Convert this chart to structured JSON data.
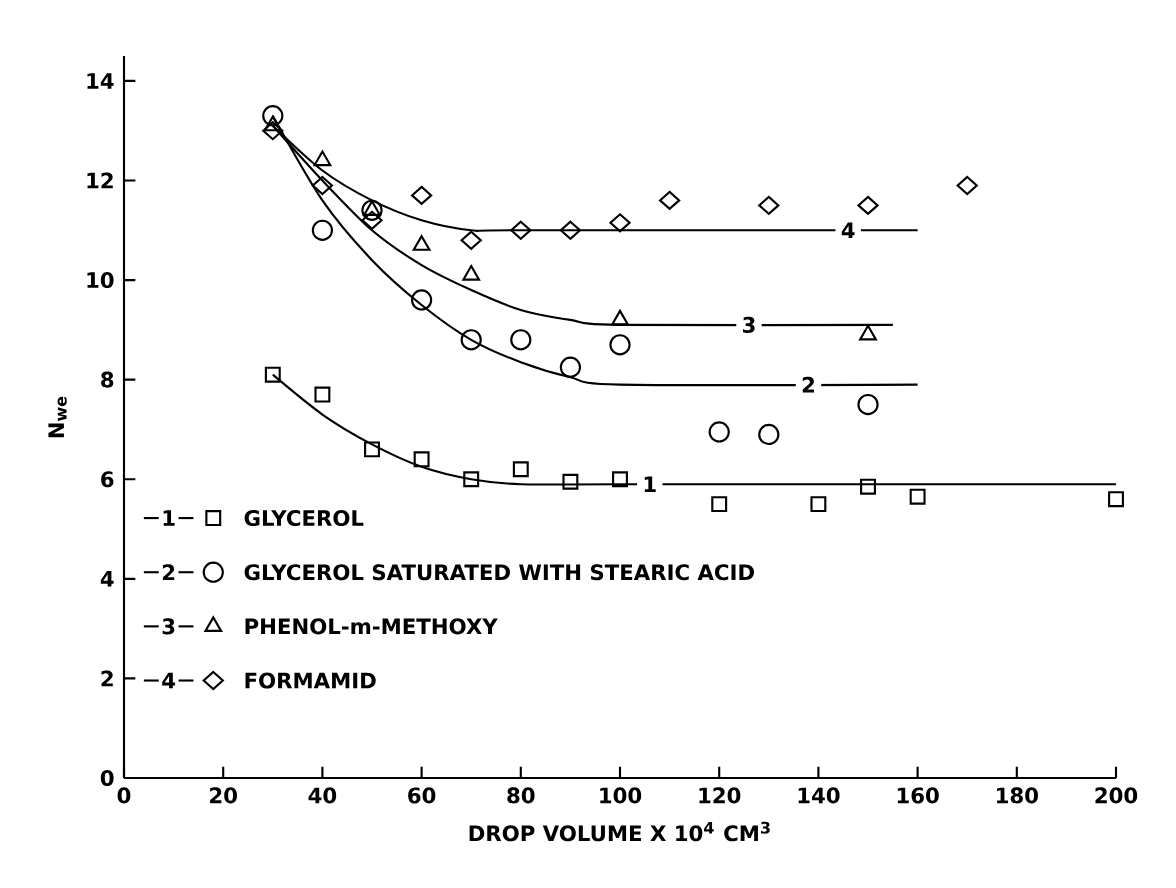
{
  "chart_data": {
    "type": "scatter",
    "xlabel": "DROP VOLUME X 10$^{4}$ CM$^{3}$",
    "ylabel": "N$_{we}$",
    "xlim": [
      0,
      200
    ],
    "ylim": [
      0,
      14.5
    ],
    "xticks": [
      0,
      20,
      40,
      60,
      80,
      100,
      120,
      140,
      160,
      180,
      200
    ],
    "yticks": [
      0,
      2,
      4,
      6,
      8,
      10,
      12,
      14
    ],
    "grid": false,
    "legend": "bottom left",
    "series": [
      {
        "name": "GLYCEROL",
        "color": "#000000",
        "marker": "square",
        "x": [
          30,
          40,
          50,
          60,
          70,
          80,
          90,
          100,
          120,
          140,
          150,
          160,
          200
        ],
        "values": [
          8.1,
          7.7,
          6.6,
          6.4,
          6.0,
          6.2,
          5.95,
          6.0,
          5.5,
          5.5,
          5.85,
          5.65,
          5.6
        ]
      },
      {
        "name": "GLYCEROL SATURATED WITH STEARIC ACID",
        "color": "#000000",
        "marker": "circle",
        "x": [
          30,
          40,
          50,
          60,
          70,
          80,
          90,
          100,
          120,
          130,
          150
        ],
        "values": [
          13.3,
          11.0,
          11.4,
          9.6,
          8.8,
          8.8,
          8.25,
          8.7,
          6.95,
          6.9,
          7.5
        ]
      },
      {
        "name": "PHENOL-m-METHOXY",
        "color": "#000000",
        "marker": "triangle",
        "x": [
          30,
          40,
          50,
          60,
          70,
          100,
          150
        ],
        "values": [
          13.1,
          12.4,
          11.4,
          10.7,
          10.1,
          9.2,
          8.9
        ]
      },
      {
        "name": "FORMAMID",
        "color": "#000000",
        "marker": "diamond",
        "x": [
          30,
          40,
          50,
          60,
          70,
          80,
          90,
          100,
          110,
          130,
          150,
          170
        ],
        "values": [
          13.0,
          11.9,
          11.2,
          11.7,
          10.8,
          11.0,
          11.0,
          11.15,
          11.6,
          11.5,
          11.5,
          11.9
        ]
      },
      {
        "type": "line",
        "color": "#000000",
        "marker": "none",
        "x": [
          30,
          40,
          50,
          60,
          70,
          80,
          100,
          200
        ],
        "values": [
          8.1,
          7.3,
          6.7,
          6.25,
          6.0,
          5.9,
          5.9,
          5.9
        ]
      },
      {
        "type": "line",
        "color": "#000000",
        "marker": "none",
        "x": [
          30,
          40,
          50,
          60,
          70,
          80,
          90,
          100,
          160
        ],
        "values": [
          13.3,
          11.6,
          10.4,
          9.5,
          8.8,
          8.35,
          8.05,
          7.9,
          7.9
        ]
      },
      {
        "type": "line",
        "color": "#000000",
        "marker": "none",
        "x": [
          30,
          40,
          50,
          60,
          70,
          80,
          90,
          100,
          155
        ],
        "values": [
          13.1,
          12.0,
          11.0,
          10.3,
          9.8,
          9.4,
          9.2,
          9.1,
          9.1
        ]
      },
      {
        "type": "line",
        "color": "#000000",
        "marker": "none",
        "x": [
          30,
          40,
          50,
          60,
          70,
          80,
          160
        ],
        "values": [
          13.1,
          12.2,
          11.6,
          11.2,
          11.0,
          11.0,
          11.0
        ]
      }
    ],
    "annotations": [
      {
        "text": "1",
        "x": 106,
        "y": 5.9
      },
      {
        "text": "2",
        "x": 138,
        "y": 7.9
      },
      {
        "text": "3",
        "x": 126,
        "y": 9.1
      },
      {
        "text": "4",
        "x": 146,
        "y": 11.0
      }
    ]
  }
}
